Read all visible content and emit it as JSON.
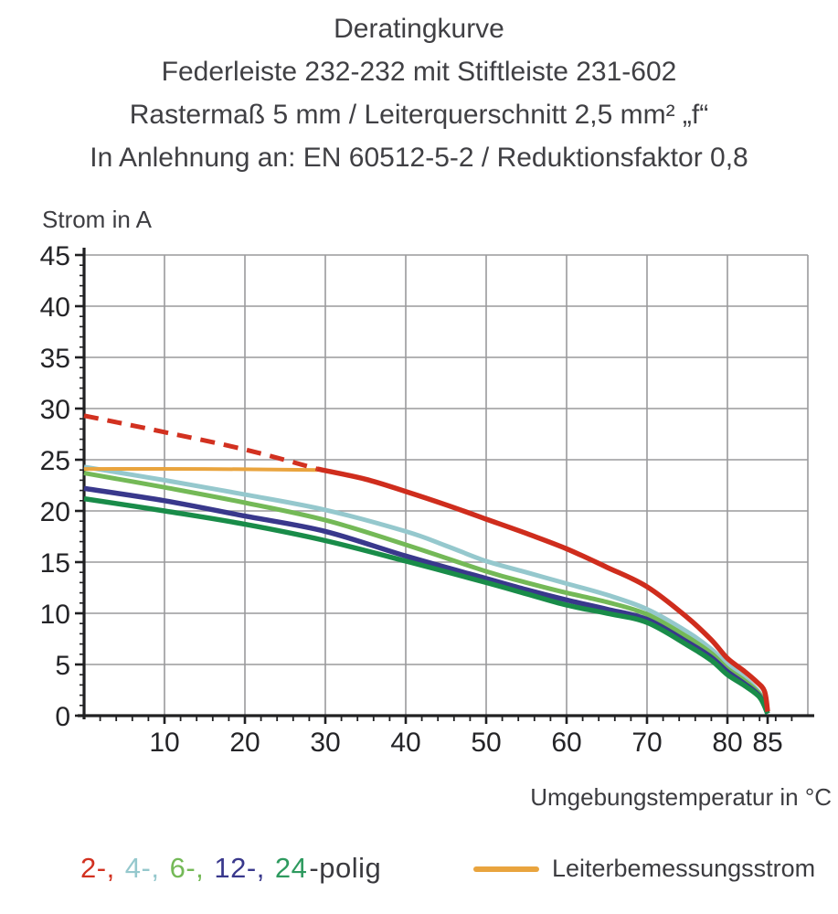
{
  "title": {
    "line1": "Deratingkurve",
    "line2": "Federleiste 232-232 mit Stiftleiste 231-602",
    "line3": "Rastermaß 5 mm / Leiterquerschnitt 2,5 mm² „f“",
    "line4": "In Anlehnung an: EN 60512-5-2 / Reduktionsfaktor 0,8"
  },
  "axis_titles": {
    "y": "Strom in A",
    "x": "Umgebungstemperatur in °C"
  },
  "legend": {
    "poles": [
      {
        "text": "2-, ",
        "color": "#d23120"
      },
      {
        "text": "4-, ",
        "color": "#95c8cd"
      },
      {
        "text": "6-, ",
        "color": "#74b957"
      },
      {
        "text": "12-, ",
        "color": "#39388c"
      },
      {
        "text": "24",
        "color": "#2e9a5f"
      },
      {
        "text": "-polig",
        "color": "#3a3a3f"
      }
    ],
    "rated": {
      "label": "Leiterbemessungsstrom",
      "color": "#e9a43e"
    }
  },
  "chart_data": {
    "type": "line",
    "title": "Deratingkurve",
    "xlabel": "Umgebungstemperatur in °C",
    "ylabel": "Strom in A",
    "xlim": [
      0,
      90
    ],
    "ylim": [
      0,
      45
    ],
    "grid": true,
    "x_ticks_major": [
      10,
      20,
      30,
      40,
      50,
      60,
      70,
      80,
      85
    ],
    "x_grid_step": 10,
    "x_minor_step": 2,
    "y_ticks_major": [
      0,
      5,
      10,
      15,
      20,
      25,
      30,
      35,
      40,
      45
    ],
    "y_minor_step": 1,
    "colors": {
      "red": "#cf2d1d",
      "orange": "#e9a43e",
      "cyan": "#95c8cd",
      "light_green": "#74b957",
      "navy": "#39388c",
      "dark_green": "#198c49"
    },
    "series": [
      {
        "name": "4-polig",
        "color": "#95c8cd",
        "style": "solid",
        "width": 5,
        "points": [
          [
            0,
            24.3
          ],
          [
            10,
            23.0
          ],
          [
            20,
            21.6
          ],
          [
            30,
            20.1
          ],
          [
            40,
            18.0
          ],
          [
            45,
            16.6
          ],
          [
            50,
            15.1
          ],
          [
            55,
            14.0
          ],
          [
            60,
            12.9
          ],
          [
            65,
            11.8
          ],
          [
            70,
            10.4
          ],
          [
            75,
            8.2
          ],
          [
            78,
            6.5
          ],
          [
            80,
            5.0
          ],
          [
            82,
            3.8
          ],
          [
            84,
            2.2
          ],
          [
            85,
            0.3
          ]
        ]
      },
      {
        "name": "6-polig",
        "color": "#74b957",
        "style": "solid",
        "width": 5,
        "points": [
          [
            0,
            23.7
          ],
          [
            10,
            22.3
          ],
          [
            20,
            20.8
          ],
          [
            30,
            19.1
          ],
          [
            40,
            16.7
          ],
          [
            50,
            14.1
          ],
          [
            55,
            13.0
          ],
          [
            60,
            12.0
          ],
          [
            65,
            11.1
          ],
          [
            70,
            9.9
          ],
          [
            75,
            7.7
          ],
          [
            78,
            6.1
          ],
          [
            80,
            4.6
          ],
          [
            82,
            3.5
          ],
          [
            84,
            2.1
          ],
          [
            85,
            0.3
          ]
        ]
      },
      {
        "name": "12-polig",
        "color": "#39388c",
        "style": "solid",
        "width": 5.5,
        "points": [
          [
            0,
            22.2
          ],
          [
            10,
            21.0
          ],
          [
            20,
            19.5
          ],
          [
            30,
            18.0
          ],
          [
            40,
            15.6
          ],
          [
            50,
            13.4
          ],
          [
            55,
            12.3
          ],
          [
            60,
            11.3
          ],
          [
            65,
            10.4
          ],
          [
            70,
            9.4
          ],
          [
            75,
            7.2
          ],
          [
            78,
            5.7
          ],
          [
            80,
            4.3
          ],
          [
            82,
            3.2
          ],
          [
            84,
            1.9
          ],
          [
            85,
            0.2
          ]
        ]
      },
      {
        "name": "24-polig",
        "color": "#198c49",
        "style": "solid",
        "width": 5.5,
        "points": [
          [
            0,
            21.2
          ],
          [
            10,
            20.0
          ],
          [
            20,
            18.7
          ],
          [
            30,
            17.1
          ],
          [
            40,
            15.1
          ],
          [
            50,
            13.0
          ],
          [
            55,
            11.9
          ],
          [
            60,
            10.8
          ],
          [
            65,
            10.0
          ],
          [
            70,
            9.1
          ],
          [
            75,
            6.9
          ],
          [
            78,
            5.4
          ],
          [
            80,
            4.0
          ],
          [
            82,
            3.0
          ],
          [
            84,
            1.8
          ],
          [
            85,
            0.2
          ]
        ]
      },
      {
        "name": "Leiterbemessungsstrom",
        "color": "#e9a43e",
        "style": "solid",
        "width": 4,
        "points": [
          [
            0,
            24.1
          ],
          [
            15,
            24.1
          ],
          [
            29,
            24.0
          ]
        ]
      },
      {
        "name": "2-polig (oberhalb Leiterbemessungsstrom)",
        "color": "#d23120",
        "style": "dashed",
        "width": 5,
        "points": [
          [
            0,
            29.3
          ],
          [
            10,
            27.7
          ],
          [
            20,
            26.0
          ],
          [
            29,
            24.1
          ]
        ]
      },
      {
        "name": "2-polig",
        "color": "#cf2d1d",
        "style": "solid",
        "width": 5.5,
        "points": [
          [
            29,
            24.1
          ],
          [
            35,
            23.1
          ],
          [
            40,
            21.9
          ],
          [
            45,
            20.6
          ],
          [
            50,
            19.2
          ],
          [
            55,
            17.8
          ],
          [
            60,
            16.3
          ],
          [
            65,
            14.5
          ],
          [
            70,
            12.6
          ],
          [
            75,
            9.6
          ],
          [
            78,
            7.4
          ],
          [
            80,
            5.6
          ],
          [
            82,
            4.4
          ],
          [
            83.5,
            3.4
          ],
          [
            84.6,
            2.4
          ],
          [
            85,
            0.4
          ]
        ]
      }
    ]
  }
}
